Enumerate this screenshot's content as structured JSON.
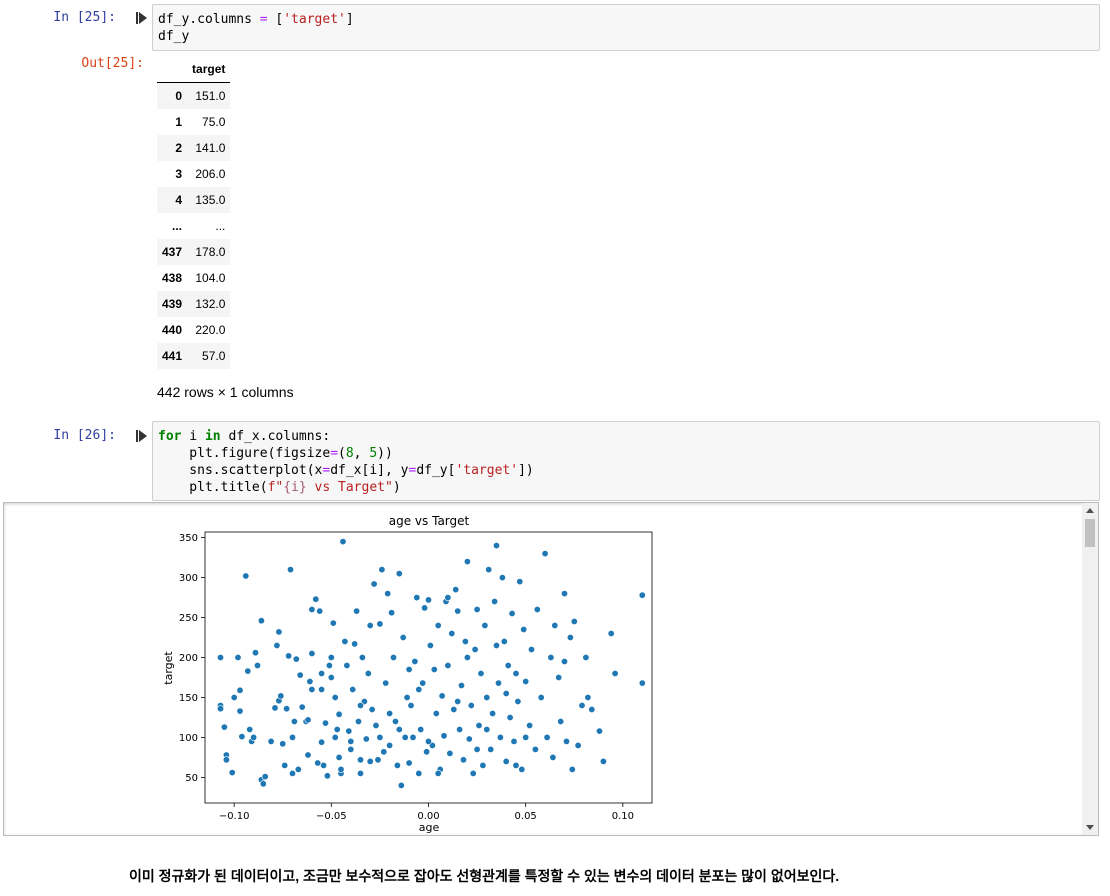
{
  "cell25": {
    "in_prompt": "In [25]:",
    "out_prompt": "Out[25]:",
    "code_line1_prefix": "df_y.columns ",
    "code_line1_eq": "=",
    "code_line1_open": " [",
    "code_line1_str": "'target'",
    "code_line1_close": "]",
    "code_line2": "df_y",
    "table": {
      "column_header": "target",
      "rows": [
        {
          "index": "0",
          "value": "151.0"
        },
        {
          "index": "1",
          "value": "75.0"
        },
        {
          "index": "2",
          "value": "141.0"
        },
        {
          "index": "3",
          "value": "206.0"
        },
        {
          "index": "4",
          "value": "135.0"
        },
        {
          "index": "...",
          "value": "..."
        },
        {
          "index": "437",
          "value": "178.0"
        },
        {
          "index": "438",
          "value": "104.0"
        },
        {
          "index": "439",
          "value": "132.0"
        },
        {
          "index": "440",
          "value": "220.0"
        },
        {
          "index": "441",
          "value": "57.0"
        }
      ],
      "shape_text": "442 rows × 1 columns"
    }
  },
  "cell26": {
    "in_prompt": "In [26]:",
    "code": {
      "l1_for": "for",
      "l1_i": " i ",
      "l1_in": "in",
      "l1_rest": " df_x.columns:",
      "l2_a": "    plt.figure(figsize",
      "l2_eq": "=",
      "l2_b": "(",
      "l2_n1": "8",
      "l2_c": ", ",
      "l2_n2": "5",
      "l2_d": "))",
      "l3_a": "    sns.scatterplot(x",
      "l3_eq1": "=",
      "l3_b": "df_x[i], y",
      "l3_eq2": "=",
      "l3_c": "df_y[",
      "l3_str": "'target'",
      "l3_d": "])",
      "l4_a": "    plt.title(",
      "l4_s1": "f\"",
      "l4_s2": "{i}",
      "l4_s3": " vs Target\"",
      "l4_d": ")"
    }
  },
  "chart_data": {
    "type": "scatter",
    "title": "age vs Target",
    "xlabel": "age",
    "ylabel": "target",
    "xlim": [
      -0.115,
      0.115
    ],
    "ylim": [
      18,
      357
    ],
    "xticks": [
      -0.1,
      -0.05,
      0.0,
      0.05,
      0.1
    ],
    "xtick_labels": [
      "−0.10",
      "−0.05",
      "0.00",
      "0.05",
      "0.10"
    ],
    "yticks": [
      50,
      100,
      150,
      200,
      250,
      300,
      350
    ],
    "ytick_labels": [
      "50",
      "100",
      "150",
      "200",
      "250",
      "300",
      "350"
    ],
    "marker_color": "#1f77b4",
    "grid": false,
    "points": [
      [
        -0.107,
        200
      ],
      [
        -0.107,
        140
      ],
      [
        -0.107,
        136
      ],
      [
        -0.105,
        113
      ],
      [
        -0.104,
        78
      ],
      [
        -0.104,
        72
      ],
      [
        -0.101,
        56
      ],
      [
        -0.1,
        150
      ],
      [
        -0.098,
        200
      ],
      [
        -0.097,
        159
      ],
      [
        -0.097,
        133
      ],
      [
        -0.096,
        101
      ],
      [
        -0.094,
        302
      ],
      [
        -0.093,
        183
      ],
      [
        -0.092,
        110
      ],
      [
        -0.091,
        95
      ],
      [
        -0.09,
        100
      ],
      [
        -0.089,
        206
      ],
      [
        -0.088,
        190
      ],
      [
        -0.086,
        246
      ],
      [
        -0.086,
        47
      ],
      [
        -0.085,
        42
      ],
      [
        -0.084,
        51
      ],
      [
        -0.081,
        95
      ],
      [
        -0.079,
        137
      ],
      [
        -0.078,
        215
      ],
      [
        -0.077,
        232
      ],
      [
        -0.077,
        146
      ],
      [
        -0.076,
        152
      ],
      [
        -0.075,
        92
      ],
      [
        -0.074,
        65
      ],
      [
        -0.073,
        136
      ],
      [
        -0.072,
        202
      ],
      [
        -0.071,
        310
      ],
      [
        -0.07,
        55
      ],
      [
        -0.069,
        120
      ],
      [
        -0.068,
        198
      ],
      [
        -0.067,
        60
      ],
      [
        -0.066,
        178
      ],
      [
        -0.065,
        138
      ],
      [
        -0.063,
        120
      ],
      [
        -0.062,
        122
      ],
      [
        -0.062,
        78
      ],
      [
        -0.061,
        170
      ],
      [
        -0.06,
        205
      ],
      [
        -0.06,
        160
      ],
      [
        -0.058,
        273
      ],
      [
        -0.057,
        68
      ],
      [
        -0.056,
        258
      ],
      [
        -0.055,
        94
      ],
      [
        -0.055,
        160
      ],
      [
        -0.055,
        180
      ],
      [
        -0.054,
        65
      ],
      [
        -0.053,
        118
      ],
      [
        -0.052,
        52
      ],
      [
        -0.051,
        190
      ],
      [
        -0.05,
        200
      ],
      [
        -0.049,
        243
      ],
      [
        -0.048,
        150
      ],
      [
        -0.048,
        100
      ],
      [
        -0.047,
        110
      ],
      [
        -0.046,
        129
      ],
      [
        -0.046,
        75
      ],
      [
        -0.045,
        55
      ],
      [
        -0.044,
        345
      ],
      [
        -0.043,
        220
      ],
      [
        -0.042,
        190
      ],
      [
        -0.041,
        108
      ],
      [
        -0.04,
        95
      ],
      [
        -0.039,
        160
      ],
      [
        -0.038,
        217
      ],
      [
        -0.037,
        258
      ],
      [
        -0.036,
        120
      ],
      [
        -0.035,
        72
      ],
      [
        -0.035,
        55
      ],
      [
        -0.034,
        200
      ],
      [
        -0.033,
        145
      ],
      [
        -0.032,
        98
      ],
      [
        -0.031,
        180
      ],
      [
        -0.03,
        70
      ],
      [
        -0.029,
        135
      ],
      [
        -0.028,
        292
      ],
      [
        -0.027,
        115
      ],
      [
        -0.026,
        72
      ],
      [
        -0.025,
        242
      ],
      [
        -0.024,
        310
      ],
      [
        -0.023,
        82
      ],
      [
        -0.022,
        168
      ],
      [
        -0.021,
        280
      ],
      [
        -0.02,
        90
      ],
      [
        -0.019,
        256
      ],
      [
        -0.018,
        200
      ],
      [
        -0.017,
        120
      ],
      [
        -0.016,
        65
      ],
      [
        -0.015,
        305
      ],
      [
        -0.014,
        40
      ],
      [
        -0.013,
        225
      ],
      [
        -0.012,
        100
      ],
      [
        -0.011,
        150
      ],
      [
        -0.01,
        68
      ],
      [
        -0.009,
        140
      ],
      [
        -0.008,
        100
      ],
      [
        -0.007,
        195
      ],
      [
        -0.006,
        275
      ],
      [
        -0.005,
        55
      ],
      [
        -0.004,
        110
      ],
      [
        -0.003,
        168
      ],
      [
        -0.002,
        262
      ],
      [
        -0.001,
        82
      ],
      [
        0.0,
        272
      ],
      [
        0.001,
        215
      ],
      [
        0.002,
        90
      ],
      [
        0.003,
        185
      ],
      [
        0.004,
        130
      ],
      [
        0.005,
        240
      ],
      [
        0.006,
        60
      ],
      [
        0.007,
        152
      ],
      [
        0.008,
        102
      ],
      [
        0.009,
        270
      ],
      [
        0.01,
        190
      ],
      [
        0.011,
        80
      ],
      [
        0.012,
        230
      ],
      [
        0.013,
        135
      ],
      [
        0.014,
        285
      ],
      [
        0.015,
        258
      ],
      [
        0.016,
        110
      ],
      [
        0.017,
        165
      ],
      [
        0.018,
        72
      ],
      [
        0.019,
        220
      ],
      [
        0.02,
        320
      ],
      [
        0.021,
        98
      ],
      [
        0.022,
        140
      ],
      [
        0.023,
        55
      ],
      [
        0.024,
        210
      ],
      [
        0.025,
        260
      ],
      [
        0.026,
        115
      ],
      [
        0.027,
        180
      ],
      [
        0.028,
        65
      ],
      [
        0.029,
        240
      ],
      [
        0.03,
        150
      ],
      [
        0.031,
        310
      ],
      [
        0.032,
        85
      ],
      [
        0.033,
        130
      ],
      [
        0.034,
        270
      ],
      [
        0.035,
        340
      ],
      [
        0.036,
        168
      ],
      [
        0.037,
        100
      ],
      [
        0.038,
        300
      ],
      [
        0.039,
        220
      ],
      [
        0.04,
        70
      ],
      [
        0.041,
        190
      ],
      [
        0.042,
        125
      ],
      [
        0.043,
        255
      ],
      [
        0.044,
        95
      ],
      [
        0.045,
        180
      ],
      [
        0.046,
        145
      ],
      [
        0.047,
        295
      ],
      [
        0.048,
        60
      ],
      [
        0.049,
        235
      ],
      [
        0.05,
        170
      ],
      [
        0.052,
        115
      ],
      [
        0.053,
        210
      ],
      [
        0.055,
        85
      ],
      [
        0.056,
        260
      ],
      [
        0.058,
        150
      ],
      [
        0.06,
        330
      ],
      [
        0.061,
        100
      ],
      [
        0.063,
        200
      ],
      [
        0.064,
        75
      ],
      [
        0.065,
        240
      ],
      [
        0.067,
        175
      ],
      [
        0.068,
        120
      ],
      [
        0.07,
        280
      ],
      [
        0.071,
        95
      ],
      [
        0.073,
        225
      ],
      [
        0.074,
        60
      ],
      [
        0.075,
        245
      ],
      [
        0.077,
        90
      ],
      [
        0.079,
        140
      ],
      [
        0.081,
        200
      ],
      [
        0.082,
        150
      ],
      [
        0.084,
        135
      ],
      [
        0.088,
        108
      ],
      [
        0.09,
        70
      ],
      [
        0.094,
        230
      ],
      [
        0.096,
        180
      ],
      [
        0.11,
        278
      ],
      [
        0.11,
        168
      ],
      [
        -0.06,
        260
      ],
      [
        -0.04,
        85
      ],
      [
        -0.02,
        130
      ],
      [
        0.0,
        95
      ],
      [
        0.02,
        200
      ],
      [
        0.04,
        155
      ],
      [
        -0.03,
        240
      ],
      [
        0.01,
        275
      ],
      [
        -0.05,
        175
      ],
      [
        0.03,
        110
      ],
      [
        -0.01,
        185
      ],
      [
        0.05,
        100
      ],
      [
        -0.07,
        100
      ],
      [
        0.07,
        195
      ],
      [
        -0.015,
        110
      ],
      [
        0.015,
        145
      ],
      [
        -0.035,
        140
      ],
      [
        0.035,
        215
      ],
      [
        -0.045,
        60
      ],
      [
        0.045,
        65
      ],
      [
        0.005,
        55
      ],
      [
        -0.025,
        100
      ],
      [
        0.025,
        85
      ],
      [
        -0.005,
        160
      ]
    ]
  },
  "markdown_text": "이미 정규화가 된 데이터이고, 조금만 보수적으로 잡아도 선형관계를 특정할 수 있는 변수의 데이터 분포는 많이 없어보인다."
}
